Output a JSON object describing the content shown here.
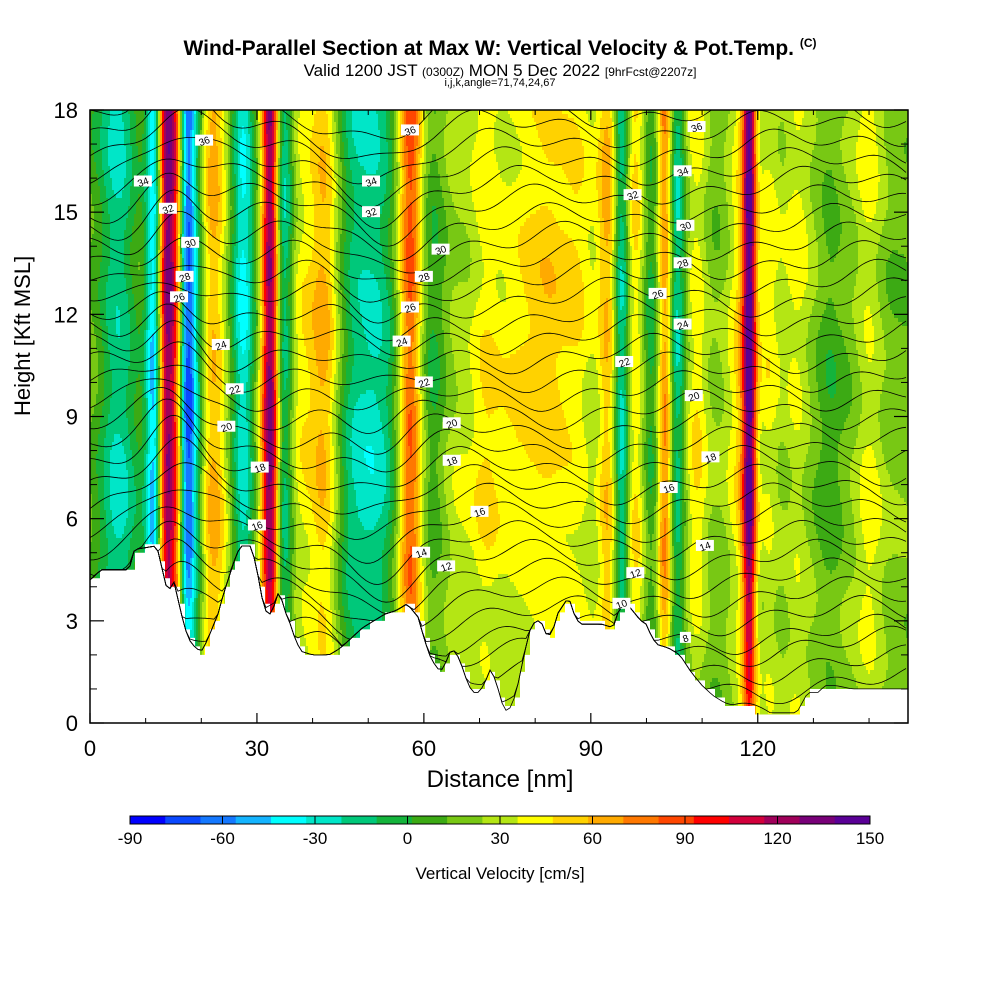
{
  "header": {
    "title": "Wind-Parallel Section at Max W: Vertical Velocity & Pot.Temp.",
    "title_tag": "(C)",
    "subtitle_a": "Valid 1200 JST",
    "subtitle_b": "(0300Z)",
    "subtitle_c": "MON 5 Dec 2022",
    "subtitle_d": "[9hrFcst@2207z]",
    "subtitle2": "i,j,k,angle=71,74,24,67"
  },
  "chart_data": {
    "type": "heatmap",
    "xlabel": "Distance [nm]",
    "ylabel": "Height [Kft MSL]",
    "xlim": [
      0,
      147
    ],
    "ylim": [
      0,
      18
    ],
    "x_ticks": [
      0,
      30,
      60,
      90,
      120
    ],
    "y_ticks": [
      0,
      3,
      6,
      9,
      12,
      15,
      18
    ],
    "colorbar": {
      "label": "Vertical Velocity [cm/s]",
      "ticks": [
        -90,
        -60,
        -30,
        0,
        30,
        60,
        90,
        120,
        150
      ],
      "min": -90,
      "max": 150,
      "colors": [
        "#0000ff",
        "#0a48ff",
        "#1478ff",
        "#14b4ff",
        "#00ffff",
        "#00e6c8",
        "#00c87a",
        "#14b43c",
        "#3caa14",
        "#78c814",
        "#b4e614",
        "#ffff00",
        "#ffd200",
        "#ffaa00",
        "#ff7800",
        "#ff4600",
        "#ff0000",
        "#d2003c",
        "#a0005a",
        "#780078",
        "#5a0096"
      ]
    },
    "terrain_profile": [
      [
        0,
        4.2
      ],
      [
        2,
        4.5
      ],
      [
        7,
        4.5
      ],
      [
        8,
        5.1
      ],
      [
        12,
        5.2
      ],
      [
        13,
        4.5
      ],
      [
        14,
        3.8
      ],
      [
        15,
        4.2
      ],
      [
        16,
        3.5
      ],
      [
        17,
        2.8
      ],
      [
        18,
        2.4
      ],
      [
        19,
        2.2
      ],
      [
        20,
        2.1
      ],
      [
        21,
        2.4
      ],
      [
        22,
        2.8
      ],
      [
        23,
        3.2
      ],
      [
        24,
        3.8
      ],
      [
        25,
        4.3
      ],
      [
        26,
        4.8
      ],
      [
        27,
        5.2
      ],
      [
        29,
        5.2
      ],
      [
        30,
        4.5
      ],
      [
        31,
        3.6
      ],
      [
        32,
        3.1
      ],
      [
        33,
        3.4
      ],
      [
        34,
        3.9
      ],
      [
        35,
        3.3
      ],
      [
        36,
        2.9
      ],
      [
        37,
        2.4
      ],
      [
        38,
        2.1
      ],
      [
        40,
        2.0
      ],
      [
        43,
        2.0
      ],
      [
        45,
        2.2
      ],
      [
        47,
        2.5
      ],
      [
        49,
        2.8
      ],
      [
        51,
        3.0
      ],
      [
        53,
        3.2
      ],
      [
        55,
        3.3
      ],
      [
        57,
        3.5
      ],
      [
        59,
        3.1
      ],
      [
        60,
        2.5
      ],
      [
        61,
        2.0
      ],
      [
        62,
        1.7
      ],
      [
        63,
        1.5
      ],
      [
        64,
        1.8
      ],
      [
        65,
        2.2
      ],
      [
        66,
        2.0
      ],
      [
        67,
        1.6
      ],
      [
        68,
        1.1
      ],
      [
        69,
        0.9
      ],
      [
        70,
        0.9
      ],
      [
        71,
        1.2
      ],
      [
        72,
        1.6
      ],
      [
        73,
        1.2
      ],
      [
        74,
        0.6
      ],
      [
        75,
        0.3
      ],
      [
        76,
        0.6
      ],
      [
        77,
        1.2
      ],
      [
        78,
        2.0
      ],
      [
        79,
        2.7
      ],
      [
        80,
        3.0
      ],
      [
        81,
        3.0
      ],
      [
        82,
        2.6
      ],
      [
        83,
        2.6
      ],
      [
        84,
        3.2
      ],
      [
        86,
        3.7
      ],
      [
        87,
        3.2
      ],
      [
        88,
        2.9
      ],
      [
        90,
        2.9
      ],
      [
        92,
        2.9
      ],
      [
        94,
        2.8
      ],
      [
        95,
        3.3
      ],
      [
        96,
        3.5
      ],
      [
        97,
        3.4
      ],
      [
        98,
        3.2
      ],
      [
        99,
        3.0
      ],
      [
        100,
        2.9
      ],
      [
        101,
        2.5
      ],
      [
        102,
        2.3
      ],
      [
        104,
        2.2
      ],
      [
        106,
        2.0
      ],
      [
        108,
        1.5
      ],
      [
        110,
        1.1
      ],
      [
        112,
        0.8
      ],
      [
        114,
        0.6
      ],
      [
        116,
        0.5
      ],
      [
        118,
        0.5
      ],
      [
        119,
        0.3
      ],
      [
        122,
        0.3
      ],
      [
        125,
        0.3
      ],
      [
        127,
        0.3
      ],
      [
        128,
        0.6
      ],
      [
        129,
        0.9
      ],
      [
        131,
        0.9
      ],
      [
        132,
        1.1
      ],
      [
        134,
        1.1
      ],
      [
        137,
        1.0
      ],
      [
        141,
        1.0
      ],
      [
        144,
        1.0
      ],
      [
        147,
        1.0
      ]
    ],
    "velocity_bands": [
      {
        "x": 5,
        "w": 3.5,
        "v": -40
      },
      {
        "x": 11.5,
        "w": 1.5,
        "v": -70
      },
      {
        "x": 13.8,
        "w": 1.6,
        "v": 110
      },
      {
        "x": 15.8,
        "w": 1.3,
        "v": 60
      },
      {
        "x": 17.3,
        "w": 1.6,
        "v": -85
      },
      {
        "x": 19.2,
        "w": 1.8,
        "v": -30
      },
      {
        "x": 22,
        "w": 2.5,
        "v": 45
      },
      {
        "x": 27.5,
        "w": 2,
        "v": -50
      },
      {
        "x": 32.4,
        "w": 1.6,
        "v": 115
      },
      {
        "x": 34.8,
        "w": 1.6,
        "v": -45
      },
      {
        "x": 38,
        "w": 2.5,
        "v": 20
      },
      {
        "x": 42,
        "w": 2.5,
        "v": 40
      },
      {
        "x": 47,
        "w": 2.5,
        "v": -15
      },
      {
        "x": 51,
        "w": 4.5,
        "v": -40
      },
      {
        "x": 57.5,
        "w": 2.2,
        "v": 70
      },
      {
        "x": 61.5,
        "w": 2.2,
        "v": -15
      },
      {
        "x": 66,
        "w": 2.5,
        "v": 10
      },
      {
        "x": 71,
        "w": 3,
        "v": 25
      },
      {
        "x": 76,
        "w": 3.5,
        "v": 15
      },
      {
        "x": 82,
        "w": 5,
        "v": 32
      },
      {
        "x": 88,
        "w": 3,
        "v": 18
      },
      {
        "x": 93,
        "w": 1.8,
        "v": 40
      },
      {
        "x": 95.5,
        "w": 1.3,
        "v": -45
      },
      {
        "x": 98,
        "w": 1.6,
        "v": 30
      },
      {
        "x": 101,
        "w": 1.5,
        "v": -20
      },
      {
        "x": 103.3,
        "w": 1.4,
        "v": 55
      },
      {
        "x": 105.5,
        "w": 1.4,
        "v": -40
      },
      {
        "x": 109,
        "w": 2,
        "v": 25
      },
      {
        "x": 117,
        "w": 2.5,
        "v": 28
      },
      {
        "x": 118.5,
        "w": 1.2,
        "v": 110
      },
      {
        "x": 122,
        "w": 2,
        "v": 20
      },
      {
        "x": 127,
        "w": 2.5,
        "v": 18
      },
      {
        "x": 133,
        "w": 2,
        "v": -10
      },
      {
        "x": 140,
        "w": 2.5,
        "v": 20
      }
    ],
    "contour_labels": [
      {
        "text": "36",
        "x": 20.5,
        "y": 17.1
      },
      {
        "text": "34",
        "x": 9.5,
        "y": 15.9
      },
      {
        "text": "32",
        "x": 14,
        "y": 15.1
      },
      {
        "text": "30",
        "x": 18,
        "y": 14.1
      },
      {
        "text": "28",
        "x": 17,
        "y": 13.1
      },
      {
        "text": "26",
        "x": 16,
        "y": 12.5
      },
      {
        "text": "24",
        "x": 23.5,
        "y": 11.1
      },
      {
        "text": "22",
        "x": 26,
        "y": 9.8
      },
      {
        "text": "20",
        "x": 24.5,
        "y": 8.7
      },
      {
        "text": "18",
        "x": 30.5,
        "y": 7.5
      },
      {
        "text": "16",
        "x": 30,
        "y": 5.8
      },
      {
        "text": "36",
        "x": 57.5,
        "y": 17.4
      },
      {
        "text": "34",
        "x": 50.5,
        "y": 15.9
      },
      {
        "text": "32",
        "x": 50.5,
        "y": 15.0
      },
      {
        "text": "30",
        "x": 63,
        "y": 13.9
      },
      {
        "text": "28",
        "x": 60,
        "y": 13.1
      },
      {
        "text": "26",
        "x": 57.5,
        "y": 12.2
      },
      {
        "text": "24",
        "x": 56,
        "y": 11.2
      },
      {
        "text": "22",
        "x": 60,
        "y": 10.0
      },
      {
        "text": "20",
        "x": 65,
        "y": 8.8
      },
      {
        "text": "18",
        "x": 65,
        "y": 7.7
      },
      {
        "text": "16",
        "x": 70,
        "y": 6.2
      },
      {
        "text": "14",
        "x": 59.5,
        "y": 5.0
      },
      {
        "text": "12",
        "x": 64,
        "y": 4.6
      },
      {
        "text": "36",
        "x": 109,
        "y": 17.5
      },
      {
        "text": "34",
        "x": 106.5,
        "y": 16.2
      },
      {
        "text": "32",
        "x": 97.5,
        "y": 15.5
      },
      {
        "text": "30",
        "x": 107,
        "y": 14.6
      },
      {
        "text": "28",
        "x": 106.5,
        "y": 13.5
      },
      {
        "text": "26",
        "x": 102,
        "y": 12.6
      },
      {
        "text": "24",
        "x": 106.5,
        "y": 11.7
      },
      {
        "text": "22",
        "x": 96,
        "y": 10.6
      },
      {
        "text": "20",
        "x": 108.5,
        "y": 9.6
      },
      {
        "text": "18",
        "x": 111.5,
        "y": 7.8
      },
      {
        "text": "16",
        "x": 104,
        "y": 6.9
      },
      {
        "text": "14",
        "x": 110.5,
        "y": 5.2
      },
      {
        "text": "12",
        "x": 98,
        "y": 4.4
      },
      {
        "text": "10",
        "x": 95.5,
        "y": 3.5
      },
      {
        "text": "8",
        "x": 107,
        "y": 2.5
      }
    ]
  }
}
